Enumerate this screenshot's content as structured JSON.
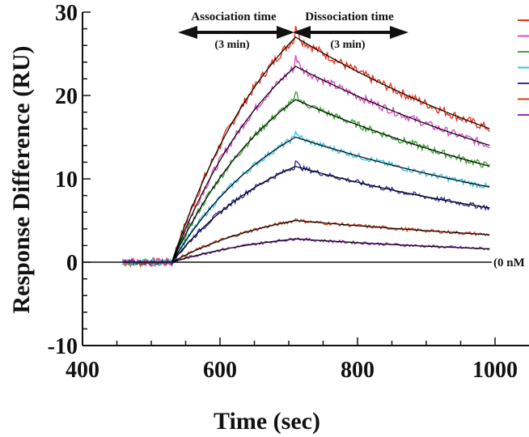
{
  "chart_data": {
    "type": "line",
    "xlabel": "Time (sec)",
    "ylabel": "Response Difference (RU)",
    "xlim": [
      400,
      1000
    ],
    "ylim": [
      -10,
      30
    ],
    "x_ticks": [
      400,
      600,
      800,
      1000
    ],
    "x_tick_labels": [
      "400",
      "600",
      "800",
      "1000"
    ],
    "y_ticks": [
      -10,
      0,
      10,
      20,
      30
    ],
    "y_tick_labels": [
      "-10",
      "0",
      "10",
      "20",
      "30"
    ],
    "grid": false,
    "legend": "top-right",
    "annotations": {
      "association": "Association time",
      "association_duration": "(3 min)",
      "dissociation": "Dissociation time",
      "dissociation_duration": "(3 min)",
      "baseline": "(0 nM"
    },
    "injection_start": 530,
    "injection_end": 710,
    "fit_color": "#000000",
    "series": [
      {
        "color": "#e8341c",
        "peak": 27.0,
        "end": 16.0
      },
      {
        "color": "#d64fc4",
        "peak": 23.5,
        "end": 14.0
      },
      {
        "color": "#3fa535",
        "peak": 19.5,
        "end": 11.5
      },
      {
        "color": "#3fc1e6",
        "peak": 15.0,
        "end": 9.0
      },
      {
        "color": "#2b2fa6",
        "peak": 11.5,
        "end": 6.5
      },
      {
        "color": "#c8431e",
        "peak": 5.0,
        "end": 3.3
      },
      {
        "color": "#8e2fb5",
        "peak": 2.8,
        "end": 1.6
      }
    ]
  }
}
